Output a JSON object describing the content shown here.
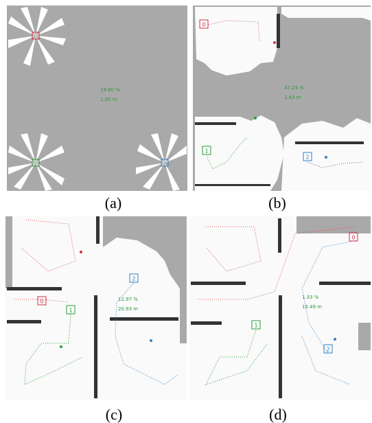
{
  "panels": [
    {
      "label": "(a)",
      "coverage": "19.80 %",
      "distance": "1.00 m"
    },
    {
      "label": "(b)",
      "coverage": "47.24 %",
      "distance": "1.43 m",
      "robots": [
        "0",
        "1",
        "2"
      ]
    },
    {
      "label": "(c)",
      "coverage": "12.97 %",
      "distance": "20.93 m",
      "robots": [
        "0",
        "1",
        "2"
      ]
    },
    {
      "label": "(d)",
      "coverage": "1.33 %",
      "distance": "15.49 m",
      "robots": [
        "0",
        "1",
        "2"
      ]
    }
  ]
}
